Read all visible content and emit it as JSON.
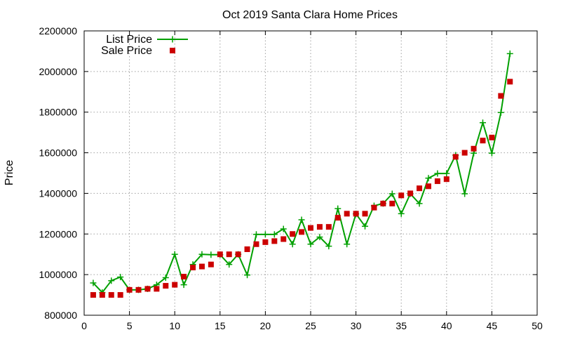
{
  "chart_data": {
    "type": "line",
    "title": "Oct 2019 Santa Clara Home Prices",
    "xlabel": "",
    "ylabel": "Price",
    "xlim": [
      0,
      50
    ],
    "ylim": [
      800000,
      2200000
    ],
    "xticks": [
      0,
      5,
      10,
      15,
      20,
      25,
      30,
      35,
      40,
      45,
      50
    ],
    "yticks": [
      800000,
      1000000,
      1200000,
      1400000,
      1600000,
      1800000,
      2000000,
      2200000
    ],
    "grid": true,
    "legend_position": "top-left",
    "series": [
      {
        "name": "List Price",
        "style": "line-points",
        "marker": "plus",
        "color": "#00a000",
        "x": [
          1,
          2,
          3,
          4,
          5,
          6,
          7,
          8,
          9,
          10,
          11,
          12,
          13,
          14,
          15,
          16,
          17,
          18,
          19,
          20,
          21,
          22,
          23,
          24,
          25,
          26,
          27,
          28,
          29,
          30,
          31,
          32,
          33,
          34,
          35,
          36,
          37,
          38,
          39,
          40,
          41,
          42,
          43,
          44,
          45,
          46,
          47
        ],
        "values": [
          959000,
          912000,
          970000,
          988000,
          925000,
          925000,
          930000,
          950000,
          985000,
          1100000,
          950000,
          1050000,
          1100000,
          1098000,
          1098000,
          1050000,
          1100000,
          998000,
          1198000,
          1198000,
          1198000,
          1225000,
          1150000,
          1270000,
          1150000,
          1185000,
          1140000,
          1325000,
          1150000,
          1299000,
          1238000,
          1339000,
          1350000,
          1398000,
          1300000,
          1398000,
          1350000,
          1475000,
          1498000,
          1498000,
          1588000,
          1398000,
          1598000,
          1748000,
          1598000,
          1798000,
          2088000
        ]
      },
      {
        "name": "Sale Price",
        "style": "points",
        "marker": "square",
        "color": "#cc0000",
        "x": [
          1,
          2,
          3,
          4,
          5,
          6,
          7,
          8,
          9,
          10,
          11,
          12,
          13,
          14,
          15,
          16,
          17,
          18,
          19,
          20,
          21,
          22,
          23,
          24,
          25,
          26,
          27,
          28,
          29,
          30,
          31,
          32,
          33,
          34,
          35,
          36,
          37,
          38,
          39,
          40,
          41,
          42,
          43,
          44,
          45,
          46,
          47
        ],
        "values": [
          900000,
          900000,
          900000,
          900000,
          925000,
          925000,
          930000,
          930000,
          945000,
          950000,
          990000,
          1035000,
          1040000,
          1050000,
          1100000,
          1100000,
          1100000,
          1125000,
          1150000,
          1160000,
          1165000,
          1175000,
          1200000,
          1210000,
          1230000,
          1235000,
          1235000,
          1280000,
          1300000,
          1300000,
          1300000,
          1330000,
          1350000,
          1350000,
          1390000,
          1400000,
          1425000,
          1435000,
          1460000,
          1470000,
          1580000,
          1600000,
          1620000,
          1660000,
          1675000,
          1880000,
          1950000
        ]
      }
    ]
  }
}
